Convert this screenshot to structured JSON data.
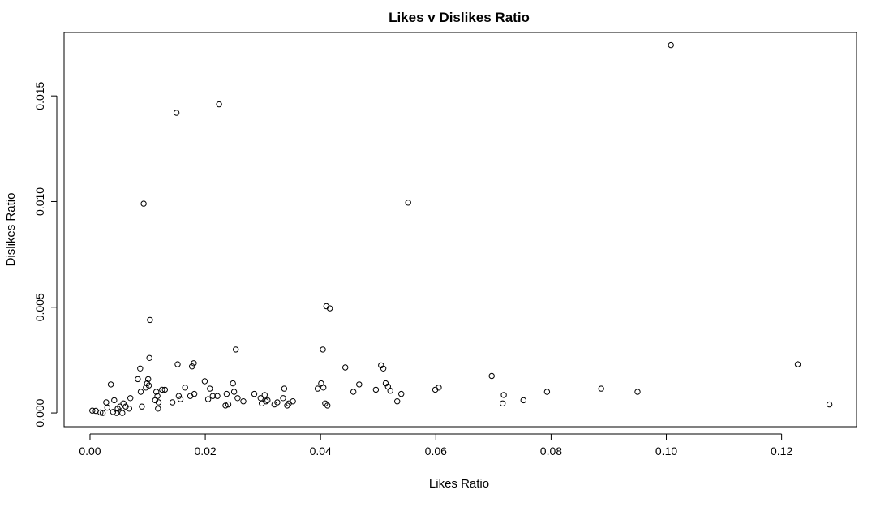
{
  "chart_data": {
    "type": "scatter",
    "title": "Likes v Dislikes Ratio",
    "xlabel": "Likes Ratio",
    "ylabel": "Dislikes Ratio",
    "xlim": [
      -0.0045,
      0.133
    ],
    "ylim": [
      -0.00065,
      0.018
    ],
    "xticks": [
      0.0,
      0.02,
      0.04,
      0.06,
      0.08,
      0.1,
      0.12
    ],
    "xtick_labels": [
      "0.00",
      "0.02",
      "0.04",
      "0.06",
      "0.08",
      "0.10",
      "0.12"
    ],
    "yticks": [
      0.0,
      0.005,
      0.01,
      0.015
    ],
    "ytick_labels": [
      "0.000",
      "0.005",
      "0.010",
      "0.015"
    ],
    "grid": false,
    "legend": "none",
    "points": [
      [
        0.0004,
        0.00011
      ],
      [
        0.001,
        0.0001
      ],
      [
        0.0018,
        2e-05
      ],
      [
        0.0022,
        0.0
      ],
      [
        0.0028,
        0.0005
      ],
      [
        0.003,
        0.00025
      ],
      [
        0.0036,
        0.00135
      ],
      [
        0.004,
        5e-05
      ],
      [
        0.0042,
        0.0006
      ],
      [
        0.0046,
        0.0
      ],
      [
        0.0048,
        0.0002
      ],
      [
        0.0052,
        0.0003
      ],
      [
        0.0056,
        0.0
      ],
      [
        0.0058,
        0.00045
      ],
      [
        0.0062,
        0.0003
      ],
      [
        0.0068,
        0.0002
      ],
      [
        0.007,
        0.0007
      ],
      [
        0.0083,
        0.0016
      ],
      [
        0.0087,
        0.0021
      ],
      [
        0.0088,
        0.001
      ],
      [
        0.009,
        0.0003
      ],
      [
        0.0093,
        0.0099
      ],
      [
        0.0097,
        0.0012
      ],
      [
        0.0099,
        0.0014
      ],
      [
        0.0101,
        0.0016
      ],
      [
        0.0102,
        0.0013
      ],
      [
        0.0103,
        0.0026
      ],
      [
        0.0104,
        0.0044
      ],
      [
        0.0113,
        0.0006
      ],
      [
        0.0115,
        0.001
      ],
      [
        0.0117,
        0.0008
      ],
      [
        0.0118,
        0.0002
      ],
      [
        0.0119,
        0.0005
      ],
      [
        0.0125,
        0.0011
      ],
      [
        0.013,
        0.0011
      ],
      [
        0.0143,
        0.0005
      ],
      [
        0.015,
        0.0142
      ],
      [
        0.0152,
        0.0023
      ],
      [
        0.0154,
        0.0008
      ],
      [
        0.0157,
        0.00065
      ],
      [
        0.0165,
        0.0012
      ],
      [
        0.0174,
        0.0008
      ],
      [
        0.0177,
        0.0022
      ],
      [
        0.018,
        0.00235
      ],
      [
        0.0181,
        0.0009
      ],
      [
        0.0199,
        0.0015
      ],
      [
        0.0205,
        0.00065
      ],
      [
        0.0208,
        0.00115
      ],
      [
        0.0213,
        0.0008
      ],
      [
        0.0221,
        0.0008
      ],
      [
        0.0224,
        0.0146
      ],
      [
        0.0235,
        0.00035
      ],
      [
        0.0237,
        0.0009
      ],
      [
        0.024,
        0.0004
      ],
      [
        0.0248,
        0.0014
      ],
      [
        0.025,
        0.001
      ],
      [
        0.0253,
        0.003
      ],
      [
        0.0256,
        0.0007
      ],
      [
        0.0266,
        0.00055
      ],
      [
        0.0285,
        0.0009
      ],
      [
        0.0296,
        0.0007
      ],
      [
        0.0298,
        0.00045
      ],
      [
        0.0303,
        0.00085
      ],
      [
        0.0305,
        0.00055
      ],
      [
        0.0308,
        0.0006
      ],
      [
        0.032,
        0.0004
      ],
      [
        0.0325,
        0.0005
      ],
      [
        0.0335,
        0.0007
      ],
      [
        0.0337,
        0.00115
      ],
      [
        0.0342,
        0.00035
      ],
      [
        0.0345,
        0.00045
      ],
      [
        0.0352,
        0.00055
      ],
      [
        0.0395,
        0.00115
      ],
      [
        0.0401,
        0.0014
      ],
      [
        0.0404,
        0.003
      ],
      [
        0.0405,
        0.0012
      ],
      [
        0.0408,
        0.00045
      ],
      [
        0.041,
        0.00505
      ],
      [
        0.0412,
        0.00035
      ],
      [
        0.0416,
        0.00495
      ],
      [
        0.0443,
        0.00215
      ],
      [
        0.0457,
        0.001
      ],
      [
        0.0467,
        0.00135
      ],
      [
        0.0496,
        0.0011
      ],
      [
        0.0505,
        0.00225
      ],
      [
        0.0509,
        0.0021
      ],
      [
        0.0513,
        0.0014
      ],
      [
        0.0517,
        0.00125
      ],
      [
        0.0521,
        0.00105
      ],
      [
        0.0533,
        0.00055
      ],
      [
        0.054,
        0.0009
      ],
      [
        0.0552,
        0.00995
      ],
      [
        0.0599,
        0.0011
      ],
      [
        0.0605,
        0.0012
      ],
      [
        0.0697,
        0.00175
      ],
      [
        0.0716,
        0.00045
      ],
      [
        0.0718,
        0.00085
      ],
      [
        0.0752,
        0.0006
      ],
      [
        0.0793,
        0.001
      ],
      [
        0.0887,
        0.00115
      ],
      [
        0.095,
        0.001
      ],
      [
        0.1008,
        0.0174
      ],
      [
        0.1228,
        0.0023
      ],
      [
        0.1283,
        0.0004
      ]
    ]
  }
}
